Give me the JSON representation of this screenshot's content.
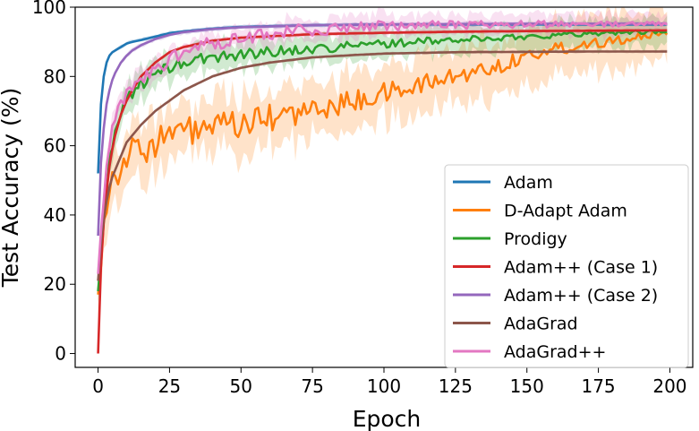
{
  "chart_data": {
    "type": "line",
    "title": "",
    "xlabel": "Epoch",
    "ylabel": "Test Accuracy (%)",
    "xlim": [
      -8,
      208
    ],
    "ylim": [
      -4,
      100
    ],
    "xticks": [
      0,
      25,
      50,
      75,
      100,
      125,
      150,
      175,
      200
    ],
    "yticks": [
      0,
      20,
      40,
      60,
      80,
      100
    ],
    "grid": false,
    "legend_position": "lower-right",
    "series": [
      {
        "name": "Adam",
        "color": "#1f77b4",
        "x": [
          0,
          1,
          2,
          3,
          4,
          5,
          6,
          8,
          10,
          12,
          15,
          20,
          25,
          30,
          40,
          50,
          75,
          100,
          125,
          150,
          175,
          199
        ],
        "y": [
          52,
          72,
          80,
          84,
          86,
          87,
          87.5,
          88.5,
          89.5,
          90,
          90.5,
          91.5,
          92.5,
          93,
          93.8,
          94.3,
          94.8,
          95,
          95,
          95,
          95,
          95
        ],
        "band": 0.5
      },
      {
        "name": "D-Adapt Adam",
        "color": "#ff7f0e",
        "x": [
          0,
          2,
          4,
          6,
          8,
          10,
          15,
          20,
          25,
          30,
          40,
          50,
          60,
          75,
          90,
          100,
          110,
          125,
          140,
          150,
          160,
          175,
          185,
          199
        ],
        "y": [
          17,
          40,
          48,
          52,
          55,
          57,
          59,
          61,
          63,
          64,
          65,
          66,
          68,
          70,
          73,
          75,
          77,
          80,
          83,
          86,
          88,
          90,
          91,
          92
        ],
        "band": 8,
        "noise": 5
      },
      {
        "name": "Prodigy",
        "color": "#2ca02c",
        "x": [
          0,
          2,
          4,
          6,
          8,
          10,
          15,
          20,
          25,
          30,
          40,
          50,
          75,
          100,
          125,
          150,
          175,
          199
        ],
        "y": [
          18,
          38,
          55,
          64,
          70,
          74,
          78,
          80.5,
          82.5,
          84,
          85.5,
          86.5,
          88,
          89.5,
          90.5,
          91.5,
          92.5,
          93
        ],
        "band": 4,
        "noise": 2
      },
      {
        "name": "Adam++ (Case 1)",
        "color": "#d62728",
        "x": [
          0,
          1,
          2,
          3,
          4,
          5,
          6,
          8,
          10,
          12,
          15,
          20,
          25,
          30,
          40,
          50,
          75,
          100,
          125,
          150,
          175,
          199
        ],
        "y": [
          0,
          25,
          38,
          47,
          54,
          59,
          63,
          69,
          73,
          76,
          80,
          84,
          87,
          88.5,
          90.3,
          91.2,
          92.2,
          92.6,
          92.9,
          93.1,
          93.2,
          93.3
        ],
        "band": 0.5
      },
      {
        "name": "Adam++ (Case 2)",
        "color": "#9467bd",
        "x": [
          0,
          1,
          2,
          3,
          4,
          5,
          6,
          8,
          10,
          12,
          15,
          20,
          25,
          30,
          40,
          50,
          75,
          100,
          125,
          150,
          175,
          199
        ],
        "y": [
          34,
          55,
          65,
          72,
          76,
          79,
          81,
          84,
          86,
          87.5,
          89,
          90.8,
          92,
          92.8,
          93.7,
          94.2,
          94.8,
          95,
          95.1,
          95.2,
          95.2,
          95.2
        ],
        "band": 0.6
      },
      {
        "name": "AdaGrad",
        "color": "#8c564b",
        "x": [
          0,
          1,
          2,
          3,
          4,
          5,
          6,
          8,
          10,
          15,
          20,
          25,
          30,
          40,
          50,
          60,
          75,
          90,
          100,
          125,
          150,
          175,
          199
        ],
        "y": [
          21,
          32,
          39,
          44,
          48,
          51,
          53,
          57,
          61,
          66,
          70,
          73,
          76,
          80,
          82.5,
          84,
          85.5,
          86.2,
          86.6,
          87,
          87.1,
          87.2,
          87.2
        ],
        "band": 0.4
      },
      {
        "name": "AdaGrad++",
        "color": "#e377c2",
        "x": [
          0,
          2,
          4,
          6,
          8,
          10,
          15,
          20,
          25,
          30,
          40,
          50,
          60,
          75,
          90,
          100,
          125,
          150,
          175,
          199
        ],
        "y": [
          23,
          45,
          60,
          67,
          72,
          75,
          79,
          82,
          85,
          87,
          89.5,
          91,
          92.5,
          93.5,
          94,
          94.5,
          94.8,
          95,
          95.1,
          95.1
        ],
        "band": 3,
        "noise": 2.5
      }
    ]
  }
}
